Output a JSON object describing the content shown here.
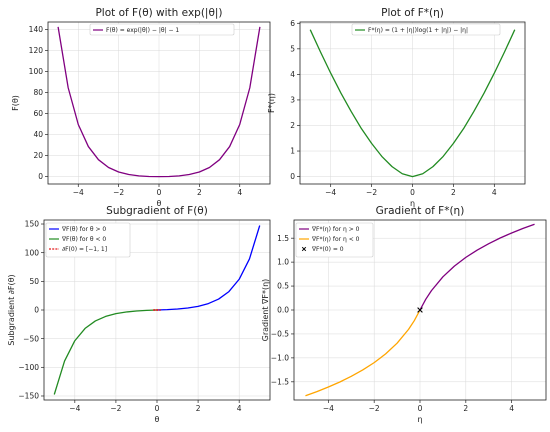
{
  "chart_data": [
    {
      "type": "line",
      "title": "Plot of F(θ) with exp(|θ|)",
      "xlabel": "θ",
      "ylabel": "F(θ)",
      "xlim": [
        -5.5,
        5.5
      ],
      "ylim": [
        -7,
        147
      ],
      "xticks": [
        -4,
        -2,
        0,
        2,
        4
      ],
      "yticks": [
        0,
        20,
        40,
        60,
        80,
        100,
        120,
        140
      ],
      "grid": true,
      "legend": "upper-center",
      "series": [
        {
          "name": "F(θ) = exp(|θ|) − |θ| − 1",
          "color": "#800080",
          "x": [
            -5,
            -4.5,
            -4,
            -3.5,
            -3,
            -2.5,
            -2,
            -1.5,
            -1,
            -0.5,
            0,
            0.5,
            1,
            1.5,
            2,
            2.5,
            3,
            3.5,
            4,
            4.5,
            5
          ],
          "y": [
            142.4,
            84.5,
            49.6,
            28.6,
            16.1,
            8.7,
            4.4,
            2.0,
            0.72,
            0.15,
            0,
            0.15,
            0.72,
            2.0,
            4.4,
            8.7,
            16.1,
            28.6,
            49.6,
            84.5,
            142.4
          ]
        }
      ]
    },
    {
      "type": "line",
      "title": "Plot of F*(η)",
      "xlabel": "η",
      "ylabel": "F*(η)",
      "xlim": [
        -5.5,
        5.5
      ],
      "ylim": [
        -0.29,
        6.05
      ],
      "xticks": [
        -4,
        -2,
        0,
        2,
        4
      ],
      "yticks": [
        0,
        1,
        2,
        3,
        4,
        5,
        6
      ],
      "grid": true,
      "legend": "upper-center",
      "series": [
        {
          "name": "F*(η) = (1 + |η|)log(1 + |η|) − |η|",
          "color": "#228b22",
          "x": [
            -5,
            -4.5,
            -4,
            -3.5,
            -3,
            -2.5,
            -2,
            -1.5,
            -1,
            -0.5,
            0,
            0.5,
            1,
            1.5,
            2,
            2.5,
            3,
            3.5,
            4,
            4.5,
            5
          ],
          "y": [
            5.75,
            4.88,
            4.05,
            3.27,
            2.55,
            1.88,
            1.3,
            0.79,
            0.39,
            0.11,
            0,
            0.11,
            0.39,
            0.79,
            1.3,
            1.88,
            2.55,
            3.27,
            4.05,
            4.88,
            5.75
          ]
        }
      ]
    },
    {
      "type": "line",
      "title": "Subgradient of F(θ)",
      "xlabel": "θ",
      "ylabel": "Subgradient ∂F(θ)",
      "xlim": [
        -5.5,
        5.5
      ],
      "ylim": [
        -157,
        157
      ],
      "xticks": [
        -4,
        -2,
        0,
        2,
        4
      ],
      "yticks": [
        -150,
        -100,
        -50,
        0,
        50,
        100,
        150
      ],
      "grid": true,
      "legend": "upper-left",
      "series": [
        {
          "name": "∇F(θ) for θ > 0",
          "color": "#0000ff",
          "x": [
            0,
            0.5,
            1,
            1.5,
            2,
            2.5,
            3,
            3.5,
            4,
            4.5,
            5
          ],
          "y": [
            0,
            0.65,
            1.72,
            3.48,
            6.39,
            11.18,
            19.09,
            32.12,
            53.6,
            89.02,
            147.41
          ]
        },
        {
          "name": "∇F(θ) for θ < 0",
          "color": "#228b22",
          "x": [
            -5,
            -4.5,
            -4,
            -3.5,
            -3,
            -2.5,
            -2,
            -1.5,
            -1,
            -0.5,
            0
          ],
          "y": [
            -147.41,
            -89.02,
            -53.6,
            -32.12,
            -19.09,
            -11.18,
            -6.39,
            -3.48,
            -1.72,
            -0.65,
            0
          ]
        },
        {
          "name": "∂F(0) = [−1, 1]",
          "color": "#e41a1c",
          "style": "dashed",
          "x": [
            0,
            0
          ],
          "y": [
            -1,
            1
          ]
        }
      ]
    },
    {
      "type": "line",
      "title": "Gradient of F*(η)",
      "xlabel": "η",
      "ylabel": "Gradient ∇F*(η)",
      "xlim": [
        -5.5,
        5.5
      ],
      "ylim": [
        -1.88,
        1.88
      ],
      "xticks": [
        -4,
        -2,
        0,
        2,
        4
      ],
      "yticks": [
        -1.5,
        -1.0,
        -0.5,
        0.0,
        0.5,
        1.0,
        1.5
      ],
      "grid": true,
      "legend": "upper-left",
      "series": [
        {
          "name": "∇F*(η) for η > 0",
          "color": "#800080",
          "x": [
            0,
            0.25,
            0.5,
            1,
            1.5,
            2,
            2.5,
            3,
            3.5,
            4,
            4.5,
            5
          ],
          "y": [
            0,
            0.223,
            0.405,
            0.693,
            0.916,
            1.099,
            1.253,
            1.386,
            1.504,
            1.609,
            1.705,
            1.792
          ]
        },
        {
          "name": "∇F*(η) for η < 0",
          "color": "#ffa500",
          "x": [
            -5,
            -4.5,
            -4,
            -3.5,
            -3,
            -2.5,
            -2,
            -1.5,
            -1,
            -0.5,
            -0.25,
            0
          ],
          "y": [
            -1.792,
            -1.705,
            -1.609,
            -1.504,
            -1.386,
            -1.253,
            -1.099,
            -0.916,
            -0.693,
            -0.405,
            -0.223,
            0
          ]
        },
        {
          "name": "∇F*(0) = 0",
          "color": "#000000",
          "style": "marker-x",
          "x": [
            0
          ],
          "y": [
            0
          ]
        }
      ]
    }
  ]
}
